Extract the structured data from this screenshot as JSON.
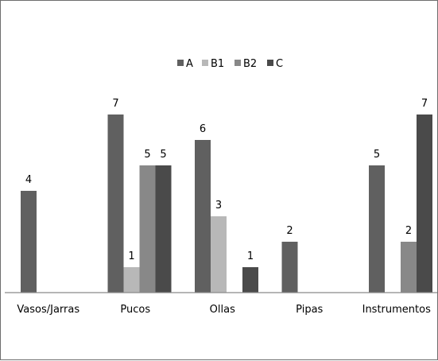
{
  "chart_data": {
    "type": "bar",
    "categories": [
      "Vasos/Jarras",
      "Pucos",
      "Ollas",
      "Pipas",
      "Instrumentos"
    ],
    "series": [
      {
        "name": "A",
        "color": "#606060",
        "values": [
          4,
          7,
          6,
          2,
          5
        ]
      },
      {
        "name": "B1",
        "color": "#b8b8b8",
        "values": [
          null,
          1,
          3,
          null,
          null
        ]
      },
      {
        "name": "B2",
        "color": "#888888",
        "values": [
          null,
          5,
          null,
          null,
          2
        ]
      },
      {
        "name": "C",
        "color": "#4a4a4a",
        "values": [
          null,
          5,
          1,
          null,
          7
        ]
      }
    ],
    "title": "",
    "xlabel": "",
    "ylabel": "",
    "ylim": [
      0,
      7
    ],
    "legend": "top-center",
    "grid": false,
    "data_labels": true
  }
}
